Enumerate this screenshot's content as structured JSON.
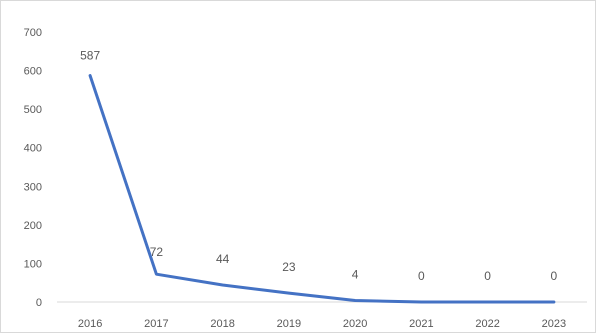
{
  "chart_data": {
    "type": "line",
    "categories": [
      "2016",
      "2017",
      "2018",
      "2019",
      "2020",
      "2021",
      "2022",
      "2023"
    ],
    "values": [
      587,
      72,
      44,
      23,
      4,
      0,
      0,
      0
    ],
    "data_labels": [
      "587",
      "72",
      "44",
      "23",
      "4",
      "0",
      "0",
      "0"
    ],
    "ylim": [
      0,
      700
    ],
    "y_ticks": [
      0,
      100,
      200,
      300,
      400,
      500,
      600,
      700
    ],
    "y_tick_labels": [
      "0",
      "100",
      "200",
      "300",
      "400",
      "500",
      "600",
      "700"
    ],
    "title": "",
    "xlabel": "",
    "ylabel": "",
    "grid": false,
    "legend": "none",
    "line_color": "#4472c4",
    "axis_color": "#d9d9d9",
    "text_color": "#595959"
  }
}
